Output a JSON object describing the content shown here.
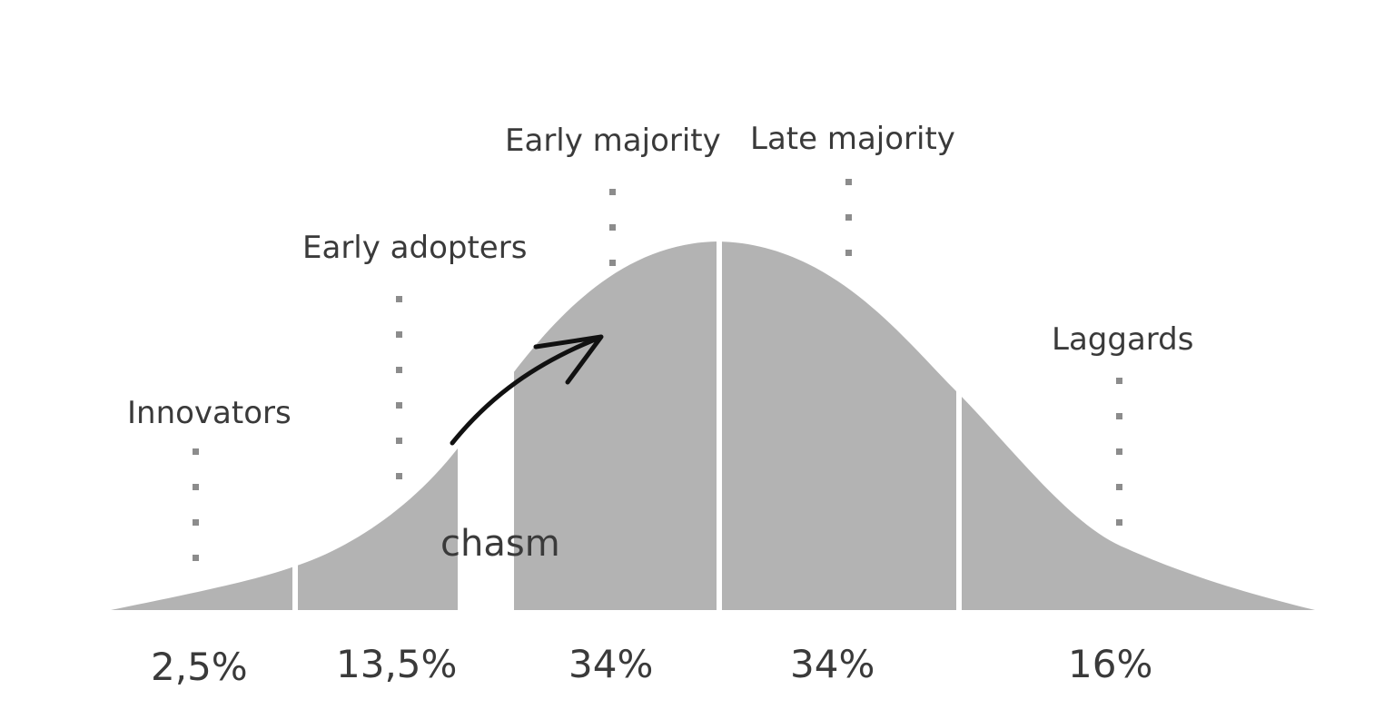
{
  "diagram": {
    "segments": [
      {
        "name": "Innovators",
        "percent": "2,5%"
      },
      {
        "name": "Early adopters",
        "percent": "13,5%"
      },
      {
        "name": "Early majority",
        "percent": "34%"
      },
      {
        "name": "Late majority",
        "percent": "34%"
      },
      {
        "name": "Laggards",
        "percent": "16%"
      }
    ],
    "chasm_label": "chasm",
    "colors": {
      "curve_fill": "#b3b3b3",
      "divider": "#ffffff",
      "dots": "#8c8c8c",
      "text": "#3a3a3a",
      "arrow": "#111111"
    }
  }
}
